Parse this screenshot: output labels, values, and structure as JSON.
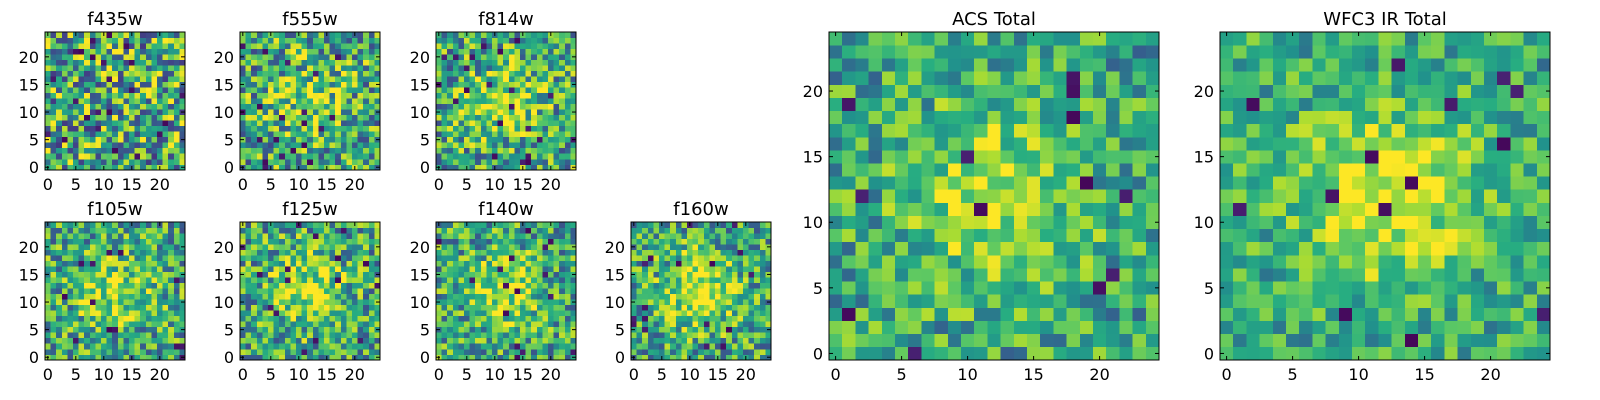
{
  "chart_data": [
    {
      "type": "heatmap",
      "title": "f435w",
      "xlabel": "",
      "ylabel": "",
      "grid_size": [
        25,
        25
      ],
      "xlim": [
        -0.5,
        24.5
      ],
      "ylim": [
        -0.5,
        24.5
      ],
      "x_ticks": [
        0,
        5,
        10,
        15,
        20
      ],
      "y_ticks": [
        0,
        5,
        10,
        15,
        20
      ],
      "colormap": "viridis",
      "center_brightness": 0.05,
      "noise": 0.42,
      "seed": 11
    },
    {
      "type": "heatmap",
      "title": "f555w",
      "xlabel": "",
      "ylabel": "",
      "grid_size": [
        25,
        25
      ],
      "xlim": [
        -0.5,
        24.5
      ],
      "ylim": [
        -0.5,
        24.5
      ],
      "x_ticks": [
        0,
        5,
        10,
        15,
        20
      ],
      "y_ticks": [
        0,
        5,
        10,
        15,
        20
      ],
      "colormap": "viridis",
      "center_brightness": 0.22,
      "noise": 0.36,
      "seed": 23
    },
    {
      "type": "heatmap",
      "title": "f814w",
      "xlabel": "",
      "ylabel": "",
      "grid_size": [
        25,
        25
      ],
      "xlim": [
        -0.5,
        24.5
      ],
      "ylim": [
        -0.5,
        24.5
      ],
      "x_ticks": [
        0,
        5,
        10,
        15,
        20
      ],
      "y_ticks": [
        0,
        5,
        10,
        15,
        20
      ],
      "colormap": "viridis",
      "center_brightness": 0.3,
      "noise": 0.34,
      "seed": 37
    },
    {
      "type": "heatmap",
      "title": "f105w",
      "xlabel": "",
      "ylabel": "",
      "grid_size": [
        25,
        25
      ],
      "xlim": [
        -0.5,
        24.5
      ],
      "ylim": [
        -0.5,
        24.5
      ],
      "x_ticks": [
        0,
        5,
        10,
        15,
        20
      ],
      "y_ticks": [
        0,
        5,
        10,
        15,
        20
      ],
      "colormap": "viridis",
      "center_brightness": 0.25,
      "noise": 0.32,
      "seed": 41
    },
    {
      "type": "heatmap",
      "title": "f125w",
      "xlabel": "",
      "ylabel": "",
      "grid_size": [
        25,
        25
      ],
      "xlim": [
        -0.5,
        24.5
      ],
      "ylim": [
        -0.5,
        24.5
      ],
      "x_ticks": [
        0,
        5,
        10,
        15,
        20
      ],
      "y_ticks": [
        0,
        5,
        10,
        15,
        20
      ],
      "colormap": "viridis",
      "center_brightness": 0.3,
      "noise": 0.32,
      "seed": 53
    },
    {
      "type": "heatmap",
      "title": "f140w",
      "xlabel": "",
      "ylabel": "",
      "grid_size": [
        25,
        25
      ],
      "xlim": [
        -0.5,
        24.5
      ],
      "ylim": [
        -0.5,
        24.5
      ],
      "x_ticks": [
        0,
        5,
        10,
        15,
        20
      ],
      "y_ticks": [
        0,
        5,
        10,
        15,
        20
      ],
      "colormap": "viridis",
      "center_brightness": 0.3,
      "noise": 0.3,
      "seed": 67
    },
    {
      "type": "heatmap",
      "title": "f160w",
      "xlabel": "",
      "ylabel": "",
      "grid_size": [
        25,
        25
      ],
      "xlim": [
        -0.5,
        24.5
      ],
      "ylim": [
        -0.5,
        24.5
      ],
      "x_ticks": [
        0,
        5,
        10,
        15,
        20
      ],
      "y_ticks": [
        0,
        5,
        10,
        15,
        20
      ],
      "colormap": "viridis",
      "center_brightness": 0.35,
      "noise": 0.3,
      "seed": 79
    },
    {
      "type": "heatmap",
      "title": "ACS Total",
      "xlabel": "",
      "ylabel": "",
      "grid_size": [
        25,
        25
      ],
      "xlim": [
        -0.5,
        24.5
      ],
      "ylim": [
        -0.5,
        24.5
      ],
      "x_ticks": [
        0,
        5,
        10,
        15,
        20
      ],
      "y_ticks": [
        0,
        5,
        10,
        15,
        20
      ],
      "colormap": "viridis",
      "center_brightness": 0.3,
      "noise": 0.25,
      "seed": 97
    },
    {
      "type": "heatmap",
      "title": "WFC3 IR Total",
      "xlabel": "",
      "ylabel": "",
      "grid_size": [
        25,
        25
      ],
      "xlim": [
        -0.5,
        24.5
      ],
      "ylim": [
        -0.5,
        24.5
      ],
      "x_ticks": [
        0,
        5,
        10,
        15,
        20
      ],
      "y_ticks": [
        0,
        5,
        10,
        15,
        20
      ],
      "colormap": "viridis",
      "center_brightness": 0.4,
      "noise": 0.22,
      "seed": 113
    }
  ]
}
